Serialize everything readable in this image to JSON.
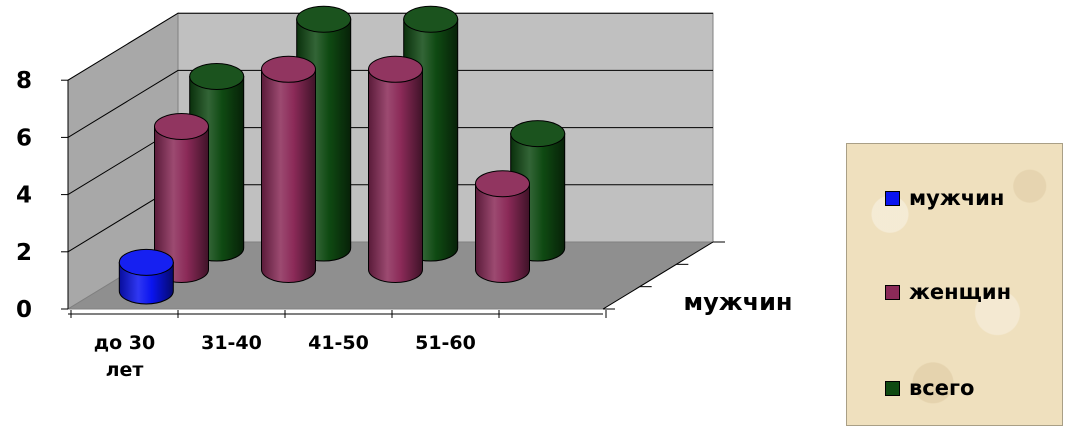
{
  "chart_data": {
    "type": "bar",
    "subtype": "3d-cylinder-clustered",
    "categories": [
      "до 30 лет",
      "31-40",
      "41-50",
      "51-60"
    ],
    "series": [
      {
        "name": "мужчин",
        "values": [
          1,
          0,
          0,
          0
        ],
        "color": "#0a14f0"
      },
      {
        "name": "женщин",
        "values": [
          5,
          7,
          7,
          3
        ],
        "color": "#8b2a58"
      },
      {
        "name": "всего",
        "values": [
          6,
          8,
          8,
          4
        ],
        "color": "#0f4a12"
      }
    ],
    "depth_axis_label": "мужчин",
    "ylim": [
      0,
      8
    ],
    "yticks": [
      "0",
      "2",
      "4",
      "6",
      "8"
    ],
    "grid": true,
    "legend_position": "right",
    "title": "",
    "xlabel": "",
    "ylabel": ""
  }
}
